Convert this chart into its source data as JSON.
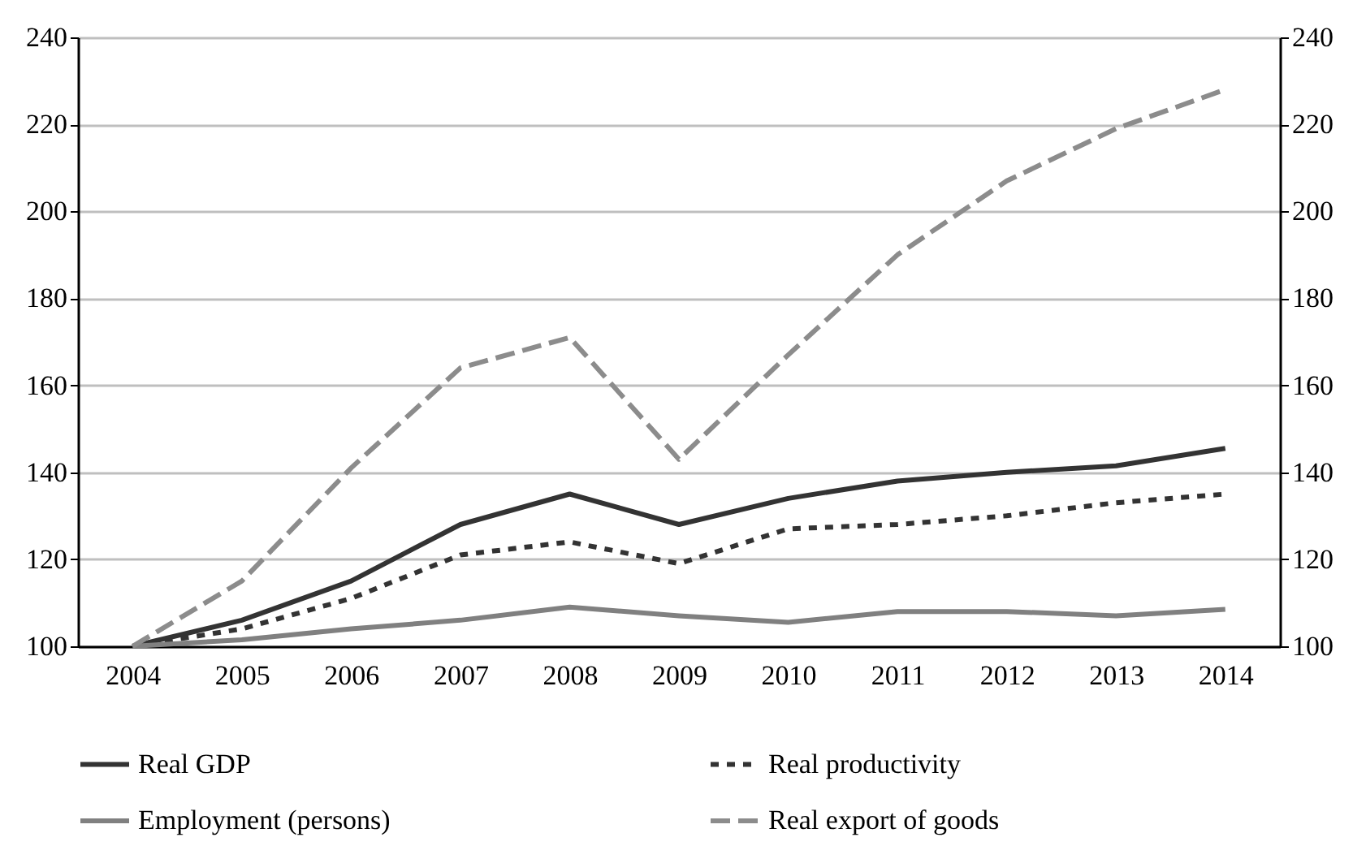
{
  "chart_data": {
    "type": "line",
    "categories": [
      "2004",
      "2005",
      "2006",
      "2007",
      "2008",
      "2009",
      "2010",
      "2011",
      "2012",
      "2013",
      "2014"
    ],
    "series": [
      {
        "name": "Real GDP",
        "color": "#333333",
        "line_style": "solid",
        "values": [
          100,
          106,
          115,
          128,
          135,
          128,
          134,
          138,
          140,
          141.5,
          145.5
        ]
      },
      {
        "name": "Real productivity",
        "color": "#333333",
        "line_style": "dotted",
        "values": [
          100,
          104,
          111,
          121,
          124,
          119,
          127,
          128,
          130,
          133,
          135
        ]
      },
      {
        "name": "Employment (persons)",
        "color": "#808080",
        "line_style": "solid",
        "values": [
          100,
          101.5,
          104,
          106,
          109,
          107,
          105.5,
          108,
          108,
          107,
          108.5
        ]
      },
      {
        "name": "Real export of goods",
        "color": "#8c8c8c",
        "line_style": "dashed",
        "values": [
          100,
          115,
          141,
          164,
          171,
          143,
          167,
          190,
          207,
          219,
          228
        ]
      }
    ],
    "ylim": [
      100,
      240
    ],
    "yticks": [
      100,
      120,
      140,
      160,
      180,
      200,
      220,
      240
    ],
    "y2lim": [
      100,
      240
    ],
    "y2ticks": [
      100,
      120,
      140,
      160,
      180,
      200,
      220,
      240
    ],
    "grid": "y",
    "legend": "bottom",
    "marker": "none"
  }
}
